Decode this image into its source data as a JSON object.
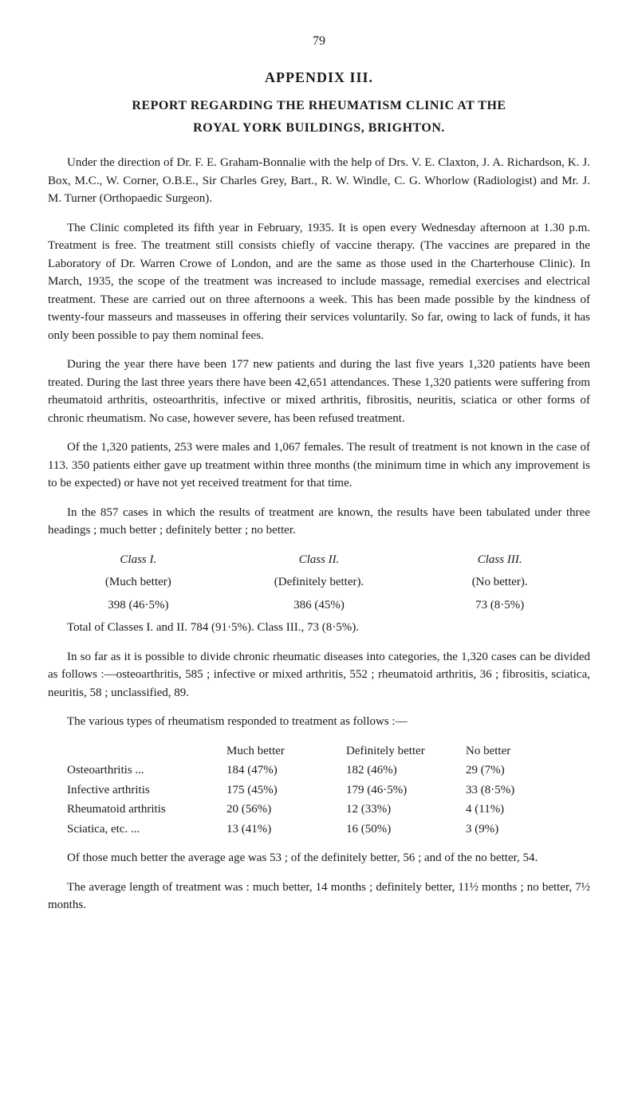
{
  "page_number": "79",
  "appendix_title": "APPENDIX III.",
  "report_title_line1": "REPORT REGARDING THE RHEUMATISM CLINIC AT THE",
  "report_title_line2": "ROYAL YORK BUILDINGS, BRIGHTON.",
  "paragraphs": {
    "p1": "Under the direction of Dr. F. E. Graham-Bonnalie with the help of Drs. V. E. Claxton, J. A. Richardson, K. J. Box, M.C., W. Corner, O.B.E., Sir Charles Grey, Bart., R. W. Windle, C. G. Whorlow (Radiologist) and Mr. J. M. Turner (Orthopaedic Surgeon).",
    "p2": "The Clinic completed its fifth year in February, 1935. It is open every Wednesday afternoon at 1.30 p.m. Treatment is free. The treatment still consists chiefly of vaccine therapy. (The vaccines are prepared in the Laboratory of Dr. Warren Crowe of London, and are the same as those used in the Charterhouse Clinic). In March, 1935, the scope of the treatment was increased to include massage, remedial exercises and electrical treatment. These are carried out on three afternoons a week. This has been made possible by the kindness of twenty-four masseurs and masseuses in offering their services voluntarily. So far, owing to lack of funds, it has only been possible to pay them nominal fees.",
    "p3": "During the year there have been 177 new patients and during the last five years 1,320 patients have been treated. During the last three years there have been 42,651 attendances. These 1,320 patients were suffering from rheumatoid arthritis, osteoarthritis, infective or mixed arthritis, fibrositis, neuritis, sciatica or other forms of chronic rheumatism. No case, however severe, has been refused treatment.",
    "p4": "Of the 1,320 patients, 253 were males and 1,067 females. The result of treatment is not known in the case of 113. 350 patients either gave up treatment within three months (the minimum time in which any improvement is to be expected) or have not yet received treatment for that time.",
    "p5": "In the 857 cases in which the results of treatment are known, the results have been tabulated under three headings ; much better ; definitely better ; no better.",
    "p6": "In so far as it is possible to divide chronic rheumatic diseases into categories, the 1,320 cases can be divided as follows :—osteoarthritis, 585 ; infective or mixed arthritis, 552 ; rheumatoid arthritis, 36 ; fibrositis, sciatica, neuritis, 58 ; unclassified, 89.",
    "p7": "The various types of rheumatism responded to treatment as follows :—",
    "p8": "Of those much better the average age was 53 ; of the definitely better, 56 ; and of the no better, 54.",
    "p9": "The average length of treatment was : much better, 14 months ; definitely better, 11½ months ; no better, 7½ months."
  },
  "classes": {
    "header": {
      "c1": "Class I.",
      "c2": "Class II.",
      "c3": "Class III."
    },
    "row1": {
      "c1": "(Much better)",
      "c2": "(Definitely better).",
      "c3": "(No better)."
    },
    "row2": {
      "c1": "398 (46·5%)",
      "c2": "386 (45%)",
      "c3": "73 (8·5%)"
    },
    "total": "Total of Classes I. and II. 784 (91·5%). Class III., 73 (8·5%)."
  },
  "treatment": {
    "headers": {
      "h1": "Much better",
      "h2": "Definitely better",
      "h3": "No better"
    },
    "rows": [
      {
        "label": "Osteoarthritis        ...",
        "c1": "184 (47%)",
        "c2": "182 (46%)",
        "c3": "29 (7%)"
      },
      {
        "label": "Infective arthritis",
        "c1": "175 (45%)",
        "c2": "179 (46·5%)",
        "c3": "33 (8·5%)"
      },
      {
        "label": "Rheumatoid arthritis",
        "c1": "20 (56%)",
        "c2": "12 (33%)",
        "c3": "4 (11%)"
      },
      {
        "label": "Sciatica, etc.           ...",
        "c1": "13 (41%)",
        "c2": "16 (50%)",
        "c3": "3 (9%)"
      }
    ]
  }
}
